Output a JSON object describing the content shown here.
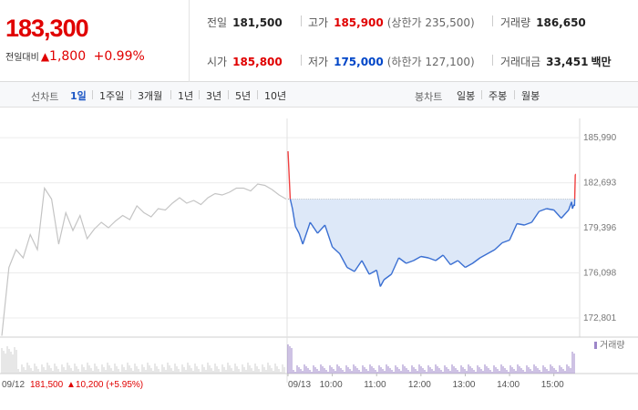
{
  "header": {
    "price": "183,300",
    "change_label": "전일대비",
    "change_amount": "1,800",
    "change_pct": "+0.99%",
    "prev_close_label": "전일",
    "prev_close": "181,500",
    "high_label": "고가",
    "high": "185,900",
    "upper_limit": "(상한가 235,500)",
    "volume_label": "거래량",
    "volume": "186,650",
    "open_label": "시가",
    "open": "185,800",
    "low_label": "저가",
    "low": "175,000",
    "lower_limit": "(하한가 127,100)",
    "amount_label": "거래대금",
    "amount": "33,451",
    "amount_unit": "백만"
  },
  "line_tabs": {
    "title": "선차트",
    "items": [
      "1일",
      "1주일",
      "3개월",
      "1년",
      "3년",
      "5년",
      "10년"
    ],
    "active": "1일"
  },
  "candle_tabs": {
    "title": "봉차트",
    "items": [
      "일봉",
      "주봉",
      "월봉"
    ]
  },
  "chart_data": {
    "type": "line",
    "ylim": [
      171400,
      187400
    ],
    "y_ticks": [
      "185,990",
      "182,693",
      "179,396",
      "176,098",
      "172,801"
    ],
    "y_tick_values": [
      185990,
      182693,
      179396,
      176098,
      172801
    ],
    "reference_price": 181500,
    "x_ticks": [
      "09/13",
      "10:00",
      "11:00",
      "12:00",
      "13:00",
      "14:00",
      "15:00"
    ],
    "x_tick_minutes": [
      0,
      60,
      120,
      180,
      240,
      300,
      360
    ],
    "session_minutes": 390,
    "prev_day": {
      "date": "09/12",
      "close": "181,500",
      "change": "10,200",
      "change_pct": "(+5.95%)",
      "values": [
        171500,
        176500,
        177800,
        177200,
        178900,
        177800,
        182300,
        181500,
        178200,
        180500,
        179200,
        180300,
        178600,
        179300,
        179800,
        179400,
        179900,
        180300,
        180000,
        181000,
        180500,
        180200,
        180800,
        180700,
        181200,
        181600,
        181200,
        181400,
        181100,
        181600,
        181900,
        181800,
        182000,
        182300,
        182300,
        182100,
        182600,
        182500,
        182200,
        181800,
        181500
      ]
    },
    "today": {
      "times": [
        0,
        3,
        6,
        10,
        15,
        20,
        30,
        40,
        50,
        60,
        70,
        80,
        90,
        100,
        110,
        120,
        125,
        130,
        140,
        150,
        160,
        170,
        180,
        190,
        200,
        210,
        220,
        230,
        240,
        250,
        260,
        270,
        280,
        290,
        300,
        310,
        320,
        330,
        340,
        350,
        360,
        370,
        380,
        384,
        385,
        386,
        387,
        388,
        389,
        390
      ],
      "values": [
        185000,
        181500,
        180800,
        179500,
        179000,
        178200,
        179800,
        179000,
        179600,
        178000,
        177500,
        176500,
        176200,
        177000,
        176000,
        176300,
        175100,
        175600,
        176000,
        177200,
        176800,
        177000,
        177300,
        177200,
        177000,
        177400,
        176700,
        177000,
        176500,
        176800,
        177200,
        177500,
        177800,
        178300,
        178500,
        179700,
        179600,
        179800,
        180600,
        180800,
        180700,
        180100,
        180700,
        181300,
        180800,
        180900,
        181100,
        181000,
        183300,
        183300
      ]
    },
    "volume_label": "거래량"
  }
}
